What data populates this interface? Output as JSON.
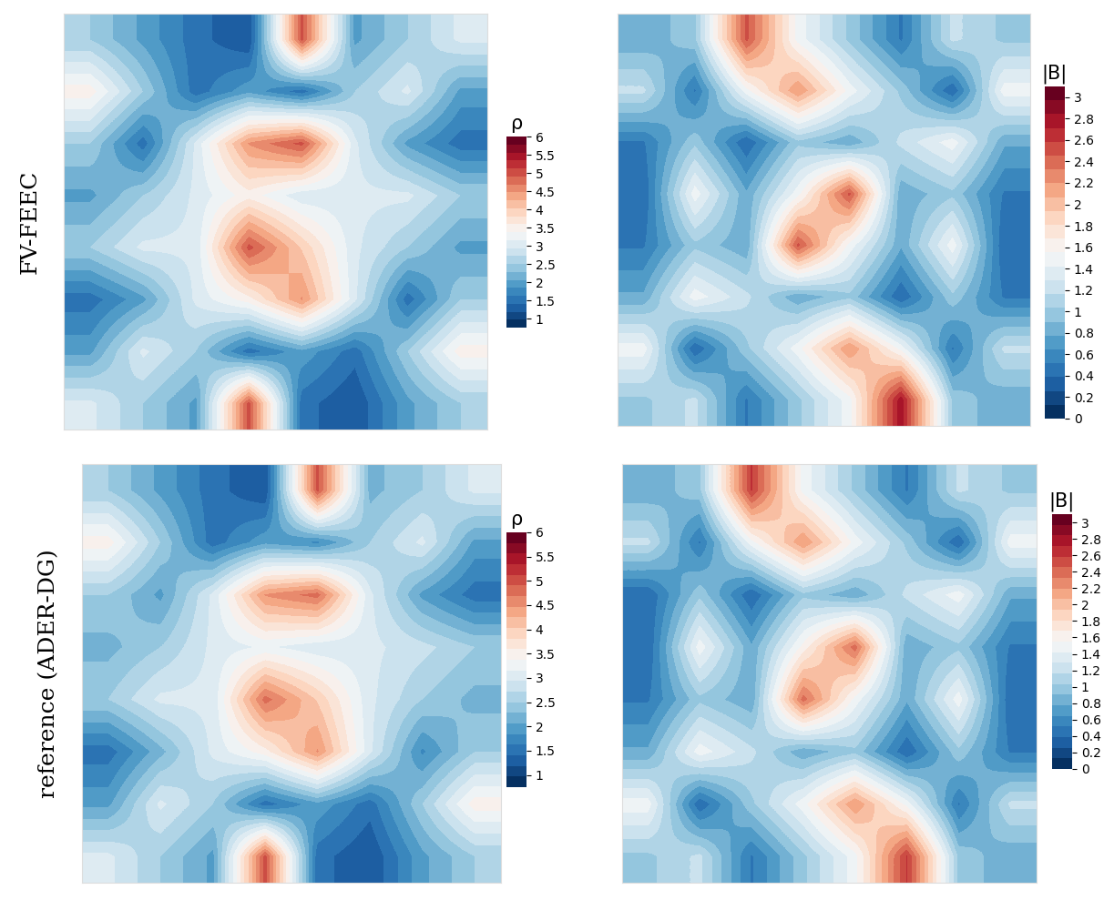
{
  "chart_data": [
    {
      "type": "heatmap",
      "ylabel": "FV-FEEC",
      "colorbar_label": "ρ",
      "tick_labels": false,
      "colorbar_range": [
        0.75,
        6
      ],
      "colorbar_ticks": [
        1,
        1.5,
        2,
        2.5,
        3,
        3.5,
        4,
        4.5,
        5,
        5.5,
        6
      ],
      "cells": [
        [
          2.5,
          2.0,
          1.5,
          1.2,
          5.0,
          2.0,
          2.5,
          3.0
        ],
        [
          3.5,
          2.5,
          1.5,
          2.0,
          1.5,
          2.5,
          3.0,
          2.0
        ],
        [
          2.5,
          1.5,
          3.0,
          4.5,
          5.0,
          3.0,
          2.0,
          1.5
        ],
        [
          2.0,
          2.5,
          3.0,
          3.5,
          3.0,
          3.0,
          3.0,
          2.5
        ],
        [
          2.5,
          3.0,
          3.0,
          5.0,
          4.0,
          3.0,
          2.5,
          2.0
        ],
        [
          1.5,
          2.0,
          3.0,
          3.5,
          4.5,
          3.0,
          1.5,
          2.5
        ],
        [
          2.0,
          3.0,
          2.5,
          1.5,
          2.0,
          1.5,
          2.5,
          3.5
        ],
        [
          3.0,
          2.5,
          2.0,
          5.0,
          1.5,
          1.2,
          2.0,
          2.5
        ]
      ]
    },
    {
      "type": "heatmap",
      "colorbar_label": "|B|",
      "tick_labels": false,
      "colorbar_range": [
        0,
        3.1
      ],
      "colorbar_ticks": [
        0,
        0.2,
        0.4,
        0.6,
        0.8,
        1,
        1.2,
        1.4,
        1.6,
        1.8,
        2,
        2.2,
        2.4,
        2.6,
        2.8,
        3
      ],
      "cells": [
        [
          0.8,
          1.0,
          2.5,
          1.5,
          1.0,
          0.5,
          1.2,
          1.0
        ],
        [
          1.2,
          0.5,
          1.5,
          2.2,
          1.5,
          1.0,
          0.4,
          1.5
        ],
        [
          0.5,
          1.0,
          0.4,
          1.0,
          0.8,
          1.2,
          1.5,
          0.8
        ],
        [
          0.4,
          1.5,
          0.8,
          1.5,
          2.5,
          0.8,
          1.0,
          0.5
        ],
        [
          0.5,
          1.0,
          0.8,
          2.5,
          1.5,
          0.8,
          1.5,
          0.4
        ],
        [
          0.8,
          1.5,
          1.2,
          0.8,
          1.0,
          0.4,
          1.0,
          0.5
        ],
        [
          1.5,
          0.4,
          1.0,
          1.5,
          2.2,
          1.5,
          0.5,
          1.2
        ],
        [
          1.0,
          1.2,
          0.5,
          1.0,
          1.5,
          2.8,
          1.0,
          0.8
        ]
      ]
    },
    {
      "type": "heatmap",
      "ylabel": "reference (ADER-DG)",
      "colorbar_label": "ρ",
      "tick_labels": false,
      "colorbar_range": [
        0.75,
        6
      ],
      "colorbar_ticks": [
        1,
        1.5,
        2,
        2.5,
        3,
        3.5,
        4,
        4.5,
        5,
        5.5,
        6
      ],
      "cells": [
        [
          2.5,
          2.0,
          1.5,
          1.2,
          5.0,
          2.2,
          2.5,
          3.0
        ],
        [
          3.5,
          2.5,
          1.5,
          2.0,
          1.8,
          2.5,
          3.0,
          2.0
        ],
        [
          2.5,
          2.0,
          3.0,
          4.5,
          4.8,
          3.0,
          2.0,
          1.5
        ],
        [
          2.2,
          2.5,
          3.0,
          3.2,
          3.0,
          3.0,
          2.8,
          2.5
        ],
        [
          2.5,
          3.0,
          3.0,
          4.8,
          4.0,
          3.0,
          2.5,
          2.2
        ],
        [
          1.5,
          2.2,
          3.0,
          3.5,
          4.5,
          3.0,
          1.8,
          2.5
        ],
        [
          2.0,
          3.0,
          2.5,
          1.5,
          2.0,
          1.5,
          2.5,
          3.5
        ],
        [
          3.0,
          2.5,
          2.0,
          5.0,
          1.5,
          1.2,
          2.0,
          2.5
        ]
      ]
    },
    {
      "type": "heatmap",
      "colorbar_label": "|B|",
      "tick_labels": false,
      "colorbar_range": [
        0,
        3.1
      ],
      "colorbar_ticks": [
        0,
        0.2,
        0.4,
        0.6,
        0.8,
        1,
        1.2,
        1.4,
        1.6,
        1.8,
        2,
        2.2,
        2.4,
        2.6,
        2.8,
        3
      ],
      "cells": [
        [
          0.8,
          1.0,
          2.6,
          1.5,
          1.0,
          0.5,
          1.2,
          1.0
        ],
        [
          1.2,
          0.5,
          1.5,
          2.2,
          1.5,
          1.0,
          0.4,
          1.5
        ],
        [
          0.4,
          1.0,
          0.4,
          1.0,
          0.8,
          1.2,
          1.5,
          0.8
        ],
        [
          0.4,
          1.5,
          0.8,
          1.6,
          2.4,
          0.8,
          1.0,
          0.5
        ],
        [
          0.5,
          1.0,
          0.8,
          2.4,
          1.5,
          0.8,
          1.5,
          0.4
        ],
        [
          0.8,
          1.5,
          1.2,
          0.8,
          1.0,
          0.4,
          1.0,
          0.5
        ],
        [
          1.5,
          0.4,
          1.0,
          1.5,
          2.2,
          1.5,
          0.5,
          1.2
        ],
        [
          1.0,
          1.2,
          0.5,
          1.0,
          1.5,
          2.6,
          1.0,
          0.8
        ]
      ]
    }
  ]
}
